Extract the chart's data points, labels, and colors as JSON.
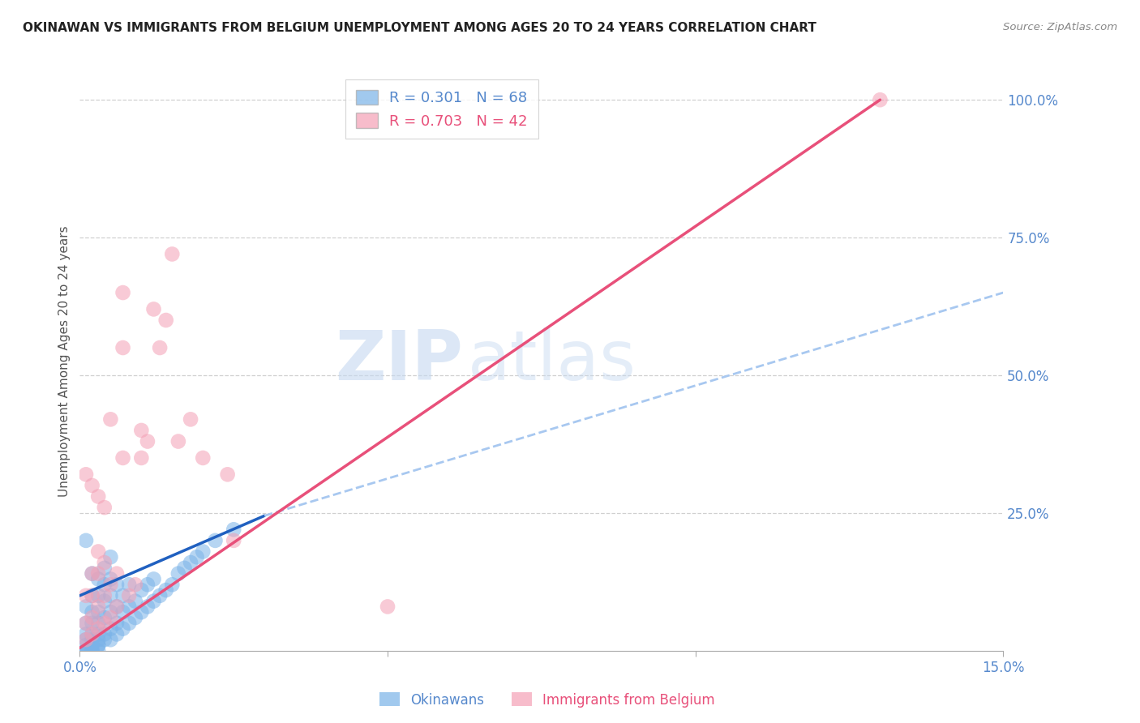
{
  "title": "OKINAWAN VS IMMIGRANTS FROM BELGIUM UNEMPLOYMENT AMONG AGES 20 TO 24 YEARS CORRELATION CHART",
  "source": "Source: ZipAtlas.com",
  "ylabel": "Unemployment Among Ages 20 to 24 years",
  "xlabel_blue": "Okinawans",
  "xlabel_pink": "Immigrants from Belgium",
  "xmin": 0.0,
  "xmax": 0.15,
  "ymin": 0.0,
  "ymax": 1.05,
  "r_blue": 0.301,
  "n_blue": 68,
  "r_pink": 0.703,
  "n_pink": 42,
  "blue_color": "#7ab3e8",
  "pink_color": "#f4a0b5",
  "trend_blue_solid_color": "#2060c0",
  "trend_pink_color": "#e8507a",
  "trend_blue_dashed_color": "#a8c8f0",
  "watermark_zip": "ZIP",
  "watermark_atlas": "atlas",
  "blue_scatter_x": [
    0.001,
    0.001,
    0.001,
    0.001,
    0.001,
    0.001,
    0.001,
    0.002,
    0.002,
    0.002,
    0.002,
    0.002,
    0.002,
    0.002,
    0.002,
    0.003,
    0.003,
    0.003,
    0.003,
    0.003,
    0.003,
    0.003,
    0.004,
    0.004,
    0.004,
    0.004,
    0.004,
    0.005,
    0.005,
    0.005,
    0.005,
    0.005,
    0.006,
    0.006,
    0.006,
    0.006,
    0.007,
    0.007,
    0.007,
    0.008,
    0.008,
    0.008,
    0.009,
    0.009,
    0.01,
    0.01,
    0.011,
    0.011,
    0.012,
    0.012,
    0.013,
    0.014,
    0.015,
    0.016,
    0.017,
    0.018,
    0.019,
    0.02,
    0.022,
    0.025,
    0.001,
    0.001,
    0.002,
    0.002,
    0.003,
    0.003,
    0.004,
    0.005
  ],
  "blue_scatter_y": [
    0.0,
    0.01,
    0.02,
    0.03,
    0.05,
    0.08,
    0.2,
    0.0,
    0.01,
    0.02,
    0.03,
    0.05,
    0.07,
    0.1,
    0.14,
    0.01,
    0.02,
    0.03,
    0.05,
    0.07,
    0.1,
    0.13,
    0.02,
    0.03,
    0.06,
    0.09,
    0.12,
    0.02,
    0.04,
    0.07,
    0.1,
    0.13,
    0.03,
    0.05,
    0.08,
    0.12,
    0.04,
    0.07,
    0.1,
    0.05,
    0.08,
    0.12,
    0.06,
    0.09,
    0.07,
    0.11,
    0.08,
    0.12,
    0.09,
    0.13,
    0.1,
    0.11,
    0.12,
    0.14,
    0.15,
    0.16,
    0.17,
    0.18,
    0.2,
    0.22,
    0.0,
    0.0,
    0.0,
    0.01,
    0.0,
    0.01,
    0.15,
    0.17
  ],
  "pink_scatter_x": [
    0.001,
    0.001,
    0.001,
    0.002,
    0.002,
    0.002,
    0.002,
    0.003,
    0.003,
    0.003,
    0.003,
    0.004,
    0.004,
    0.004,
    0.005,
    0.005,
    0.005,
    0.006,
    0.006,
    0.007,
    0.007,
    0.007,
    0.008,
    0.009,
    0.01,
    0.01,
    0.011,
    0.012,
    0.013,
    0.014,
    0.015,
    0.016,
    0.018,
    0.02,
    0.024,
    0.025,
    0.001,
    0.002,
    0.003,
    0.004,
    0.13,
    0.05
  ],
  "pink_scatter_y": [
    0.02,
    0.05,
    0.1,
    0.03,
    0.06,
    0.1,
    0.14,
    0.04,
    0.08,
    0.14,
    0.18,
    0.05,
    0.1,
    0.16,
    0.06,
    0.12,
    0.42,
    0.08,
    0.14,
    0.35,
    0.55,
    0.65,
    0.1,
    0.12,
    0.35,
    0.4,
    0.38,
    0.62,
    0.55,
    0.6,
    0.72,
    0.38,
    0.42,
    0.35,
    0.32,
    0.2,
    0.32,
    0.3,
    0.28,
    0.26,
    1.0,
    0.08
  ],
  "blue_trend_x0": 0.0,
  "blue_trend_y0": 0.1,
  "blue_trend_x1": 0.03,
  "blue_trend_y1": 0.245,
  "blue_trend_xend": 0.15,
  "blue_trend_yend": 0.65,
  "pink_trend_x0": 0.0,
  "pink_trend_y0": 0.005,
  "pink_trend_x1": 0.13,
  "pink_trend_y1": 1.0
}
